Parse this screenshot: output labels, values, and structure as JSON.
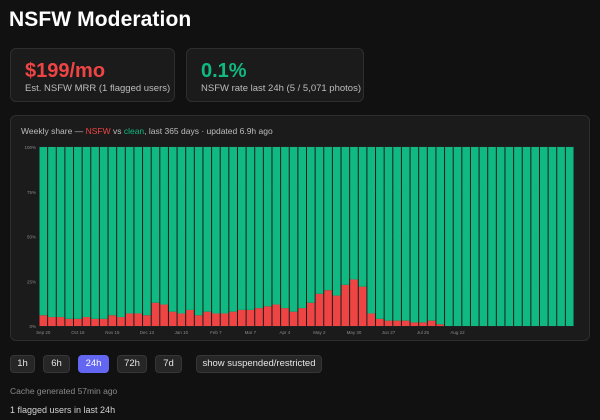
{
  "header": {
    "title": "NSFW Moderation"
  },
  "stats": [
    {
      "value": "$199/mo",
      "label": "Est. NSFW MRR (1 flagged users)",
      "color": "#ef4444"
    },
    {
      "value": "0.1%",
      "label": "NSFW rate last 24h (5 / 5,071 photos)",
      "color": "#10b981"
    }
  ],
  "chart_card": {
    "title_prefix": "Weekly share — ",
    "title_nsfw": "NSFW",
    "title_vs": " vs ",
    "title_clean": "clean",
    "title_suffix": ", last 365 days · updated 6.9h ago"
  },
  "chart_data": {
    "type": "bar",
    "stacked": true,
    "series": [
      {
        "name": "NSFW",
        "color": "#ef4444",
        "values": [
          6,
          5,
          5,
          4,
          4,
          5,
          4,
          4,
          6,
          5,
          7,
          7,
          6,
          13,
          12,
          8,
          7,
          9,
          6,
          8,
          7,
          7,
          8,
          9,
          9,
          10,
          11,
          12,
          10,
          8,
          10,
          13,
          18,
          20,
          17,
          23,
          26,
          22,
          7,
          4,
          3,
          3,
          3,
          2,
          2,
          3,
          1,
          0,
          0,
          0,
          0,
          0,
          0,
          0,
          0,
          0,
          0,
          0,
          0,
          0,
          0,
          0
        ]
      },
      {
        "name": "clean",
        "color": "#10b981",
        "values": [
          94,
          95,
          95,
          96,
          96,
          95,
          96,
          96,
          94,
          95,
          93,
          93,
          94,
          87,
          88,
          92,
          93,
          91,
          94,
          92,
          93,
          93,
          92,
          91,
          91,
          90,
          89,
          88,
          90,
          92,
          90,
          87,
          82,
          80,
          83,
          77,
          74,
          78,
          93,
          96,
          97,
          97,
          97,
          98,
          98,
          97,
          99,
          100,
          100,
          100,
          100,
          100,
          100,
          100,
          100,
          100,
          100,
          100,
          100,
          100,
          100,
          100
        ]
      }
    ],
    "x_ticks": [
      "Sep 20",
      "Oct 18",
      "Nov 15",
      "Dec 13",
      "Jan 10",
      "Feb 7",
      "Mar 7",
      "Apr 4",
      "May 2",
      "May 30",
      "Jun 27",
      "Jul 25",
      "Aug 22"
    ],
    "y_ticks": [
      "0%",
      "25%",
      "50%",
      "75%",
      "100%"
    ],
    "ylim": [
      0,
      100
    ],
    "grid": true
  },
  "controls": {
    "ranges": [
      "1h",
      "6h",
      "24h",
      "72h",
      "7d"
    ],
    "active_range": "24h",
    "suspended_label": "show suspended/restricted"
  },
  "footer": {
    "cache_note": "Cache generated 57min ago",
    "flagged_note": "1 flagged users in last 24h"
  }
}
